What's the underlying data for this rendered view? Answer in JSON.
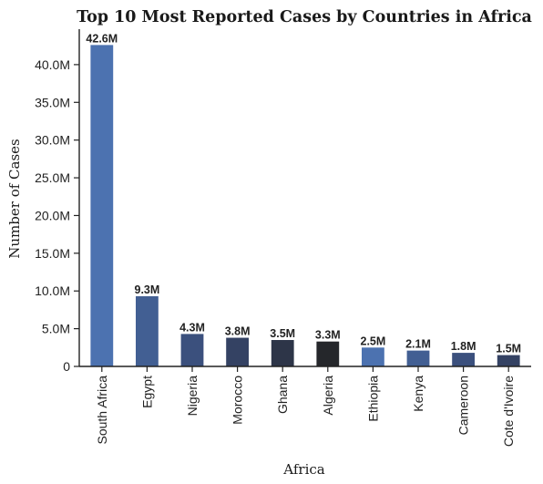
{
  "chart_data": {
    "type": "bar",
    "title": "Top 10 Most Reported Cases by Countries in Africa",
    "xlabel": "Africa",
    "ylabel": "Number of Cases",
    "categories": [
      "South Africa",
      "Egypt",
      "Nigeria",
      "Morocco",
      "Ghana",
      "Algeria",
      "Ethiopia",
      "Kenya",
      "Cameroon",
      "Cote d'Ivoire"
    ],
    "values": [
      42.6,
      9.3,
      4.3,
      3.8,
      3.5,
      3.3,
      2.5,
      2.1,
      1.8,
      1.5
    ],
    "data_labels": [
      "42.6M",
      "9.3M",
      "4.3M",
      "3.8M",
      "3.5M",
      "3.3M",
      "2.5M",
      "2.1M",
      "1.8M",
      "1.5M"
    ],
    "unit": "millions",
    "yticks": [
      0,
      5,
      10,
      15,
      20,
      25,
      30,
      35,
      40
    ],
    "ytick_labels": [
      "0",
      "5.0M",
      "10.0M",
      "15.0M",
      "20.0M",
      "25.0M",
      "30.0M",
      "35.0M",
      "40.0M"
    ],
    "ylim": [
      0,
      44.7
    ],
    "grid": false,
    "colors": [
      "#4c72b0",
      "#425f93",
      "#3b507d",
      "#344263",
      "#2d3548",
      "#25272b",
      "#4c72b0",
      "#425f93",
      "#3b507d",
      "#344263"
    ]
  }
}
